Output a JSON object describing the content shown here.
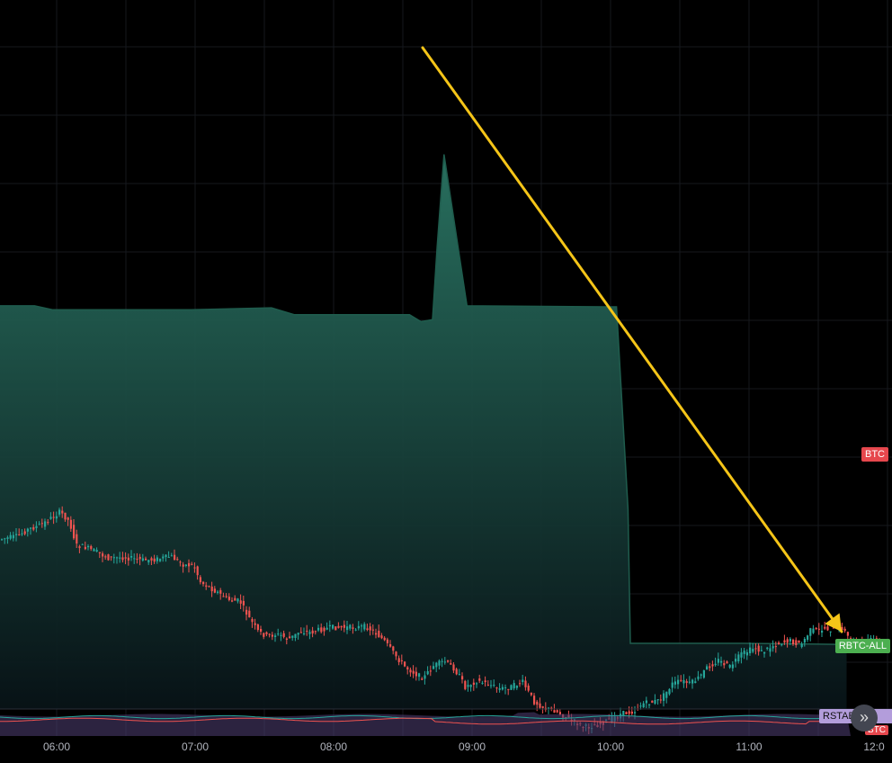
{
  "chart_data": {
    "type": "line",
    "title": "",
    "xlabel": "",
    "ylabel": "",
    "x_ticks": [
      "06:00",
      "07:00",
      "08:00",
      "09:00",
      "10:00",
      "11:00",
      "12:0"
    ],
    "x_range": [
      "05:37",
      "12:00"
    ],
    "y_scale": "relative (no price axis shown)",
    "grid": true,
    "series": [
      {
        "name": "BTC",
        "style": "candlestick",
        "x": [
          "05:37",
          "05:45",
          "05:50",
          "05:56",
          "06:04",
          "06:08",
          "06:11",
          "06:15",
          "06:20",
          "06:25",
          "06:32",
          "06:40",
          "06:46",
          "06:52",
          "06:58",
          "07:02",
          "07:05",
          "07:12",
          "07:18",
          "07:22",
          "07:26",
          "07:30",
          "07:34",
          "07:37",
          "07:40",
          "07:43",
          "07:46",
          "07:48",
          "07:53",
          "07:57",
          "08:02",
          "08:07",
          "08:12",
          "08:17",
          "08:22",
          "08:25",
          "08:30",
          "08:34",
          "08:40",
          "08:42",
          "08:46",
          "08:48",
          "08:51",
          "08:55",
          "08:58",
          "09:00",
          "09:05",
          "09:10",
          "09:15",
          "09:20",
          "09:25",
          "09:30",
          "09:35",
          "09:39",
          "09:45",
          "09:52",
          "09:58",
          "10:04",
          "10:08",
          "10:11",
          "10:14",
          "10:17",
          "10:20",
          "10:24",
          "10:27",
          "10:30",
          "10:34",
          "10:38",
          "10:42",
          "10:45",
          "10:50",
          "10:55",
          "11:00",
          "11:03",
          "11:06",
          "11:09",
          "11:12",
          "11:15",
          "11:18",
          "11:21",
          "11:26",
          "11:30",
          "11:33",
          "11:37",
          "11:41",
          "11:44",
          "11:47",
          "11:52",
          "11:57",
          "12:00"
        ],
        "y": [
          10.5,
          10.8,
          11.5,
          12.0,
          13.3,
          12.3,
          9.9,
          9.7,
          9.2,
          8.6,
          8.7,
          8.4,
          8.5,
          8.8,
          7.9,
          7.9,
          6.2,
          5.2,
          4.3,
          4.3,
          2.6,
          1.2,
          0.7,
          0.9,
          0.8,
          0.4,
          0.8,
          1.2,
          1.1,
          1.4,
          1.6,
          1.6,
          1.6,
          1.7,
          0.9,
          0.2,
          -1.3,
          -2.4,
          -3.3,
          -3.5,
          -2.3,
          -2.1,
          -1.8,
          -2.5,
          -3.5,
          -4.4,
          -3.8,
          -4.1,
          -4.6,
          -4.4,
          -3.9,
          -5.9,
          -6.6,
          -6.8,
          -7.6,
          -8.5,
          -8.2,
          -7.6,
          -7.1,
          -7.0,
          -6.8,
          -6.1,
          -6.0,
          -5.8,
          -5.1,
          -4.1,
          -3.8,
          -4.1,
          -3.4,
          -2.5,
          -1.7,
          -2.4,
          -1.1,
          -0.8,
          -0.4,
          -0.9,
          -0.5,
          -0.1,
          0.1,
          0.3,
          -0.2,
          1.3,
          1.3,
          1.5,
          1.3,
          1.6,
          0.4,
          0.1,
          0.3,
          0.2
        ]
      },
      {
        "name": "RBTC-ALL",
        "style": "area",
        "x": [
          "05:37",
          "05:52",
          "06:00",
          "07:00",
          "07:35",
          "07:45",
          "08:00",
          "08:35",
          "08:40",
          "08:45",
          "08:47",
          "08:50",
          "09:00",
          "10:00",
          "10:05",
          "10:10",
          "10:11",
          "11:00",
          "11:40",
          "11:45"
        ],
        "y": [
          34.1,
          34.1,
          33.7,
          33.7,
          33.9,
          33.2,
          33.2,
          33.2,
          32.5,
          32.7,
          40.0,
          49.4,
          34.1,
          34.0,
          34.0,
          13.6,
          0.0,
          0.0,
          -0.1,
          -0.1
        ]
      },
      {
        "name": "RSTAB-ALL",
        "style": "sub-pane line"
      }
    ],
    "annotations": [
      {
        "type": "arrow",
        "color": "#f5c518",
        "from": [
          "08:47",
          "peak"
        ],
        "to": [
          "11:45",
          "RBTC-ALL level"
        ]
      }
    ]
  },
  "price_labels": {
    "btc": "BTC",
    "rbtc": "RBTC-ALL",
    "rstab": "RSTAB-ALL",
    "btc_small": "BTC"
  },
  "scroll_button": {
    "icon": "double-chevron-right-icon",
    "glyph": "»"
  },
  "colors": {
    "background": "#000000",
    "grid": "#16181d",
    "candle_up": "#26a69a",
    "candle_down": "#ef5350",
    "area_top": "#2a7563",
    "area_bottom": "#081317",
    "arrow": "#f5c518",
    "badge_btc": "#e6474d",
    "badge_rbtc": "#4caf50",
    "badge_rstab": "#b39ddb",
    "axis_text": "#b2b5be",
    "subpane_fill": "#4a3b6b"
  }
}
